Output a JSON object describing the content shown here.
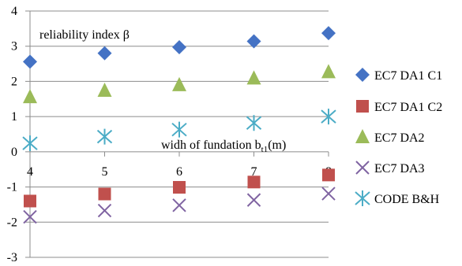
{
  "chart_data": {
    "type": "scatter",
    "ylabel": "reliability index β",
    "xlabel_main": "widh of fundation  b",
    "xlabel_sub": "t1",
    "xlabel_unit": "(m)",
    "categories": [
      "4",
      "5",
      "6",
      "7",
      "8"
    ],
    "x": [
      4,
      5,
      6,
      7,
      8
    ],
    "ylim": [
      -3,
      4
    ],
    "yticks": [
      "4",
      "3",
      "2",
      "1",
      "0",
      "-1",
      "-2",
      "-3"
    ],
    "ytick_values": [
      4,
      3,
      2,
      1,
      0,
      -1,
      -2,
      -3
    ],
    "grid": true,
    "legend_position": "right",
    "series": [
      {
        "name": "EC7 DA1 C1",
        "marker": "diamond",
        "color": "#4472C4",
        "values": [
          2.56,
          2.8,
          2.97,
          3.14,
          3.37
        ]
      },
      {
        "name": "EC7 DA1 C2",
        "marker": "square",
        "color": "#C0504D",
        "values": [
          -1.4,
          -1.2,
          -1.01,
          -0.86,
          -0.66
        ]
      },
      {
        "name": "EC7 DA2",
        "marker": "triangle",
        "color": "#9BBB59",
        "values": [
          1.56,
          1.74,
          1.9,
          2.09,
          2.27
        ]
      },
      {
        "name": "EC7 DA3",
        "marker": "x",
        "color": "#8064A2",
        "values": [
          -1.85,
          -1.67,
          -1.52,
          -1.37,
          -1.19
        ]
      },
      {
        "name": "CODE B&H",
        "marker": "asterisk",
        "color": "#4BACC6",
        "values": [
          0.24,
          0.43,
          0.63,
          0.82,
          1.0
        ]
      }
    ]
  }
}
